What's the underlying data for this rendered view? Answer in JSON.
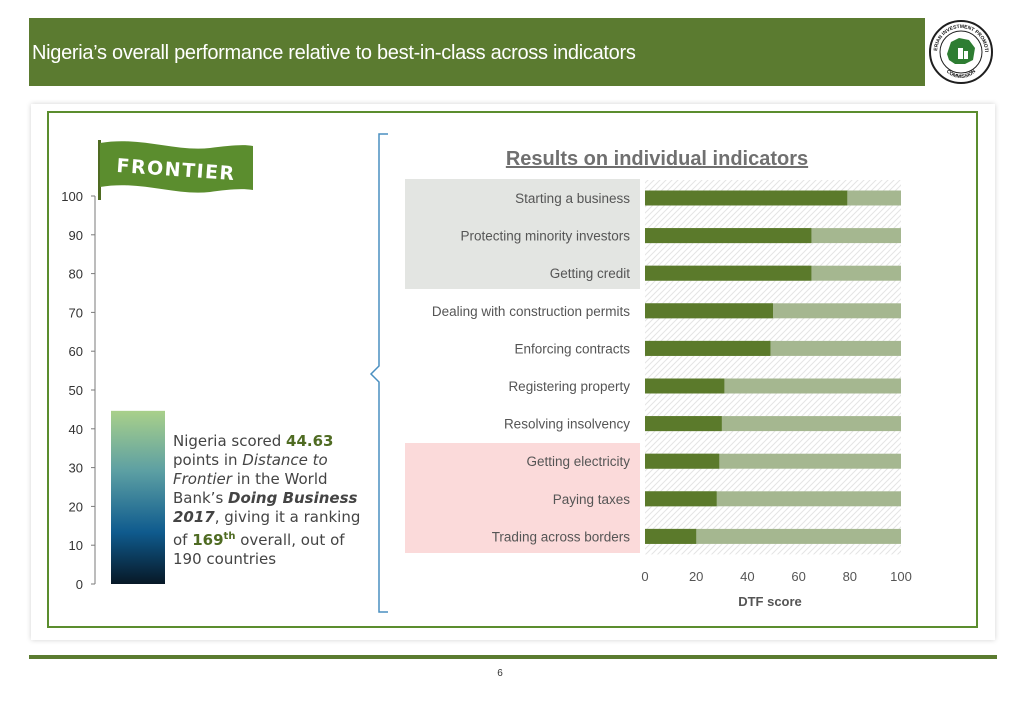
{
  "header": {
    "title": "Nigeria’s overall performance relative to best-in-class across indicators"
  },
  "logo": {
    "text_top": "NIGERIAN INVESTMENT PROMOTION",
    "text_bottom": "COMMISSION"
  },
  "flag_label": "FRONTIER",
  "blurb": {
    "p1": "Nigeria scored ",
    "score": "44.63",
    "p2": " points in ",
    "dtf": "Distance to Frontier",
    "p3": " in the World Bank’s ",
    "db": "Doing Business 2017",
    "p4": ", giving it a ranking of ",
    "rank": "169",
    "rank_sup": "th",
    "p5": " overall, out of 190 countries"
  },
  "page_number": "6",
  "colors": {
    "header_green": "#5b7b30",
    "bar_dark": "#5b7a2b",
    "bar_light": "#a5b790",
    "band_grey": "#e3e5e2",
    "band_pink": "#fbdada"
  },
  "chart_data": [
    {
      "type": "bar",
      "orientation": "vertical",
      "categories": [
        ""
      ],
      "values": [
        44.63
      ],
      "ylim": [
        0,
        100
      ],
      "yticks": [
        "0",
        "10",
        "20",
        "30",
        "40",
        "50",
        "60",
        "70",
        "80",
        "90",
        "100"
      ]
    },
    {
      "type": "bar",
      "orientation": "horizontal",
      "stacked": true,
      "title": "Results on individual indicators",
      "xlabel": "DTF score",
      "xlim": [
        0,
        100
      ],
      "xticks": [
        "0",
        "20",
        "40",
        "60",
        "80",
        "100"
      ],
      "categories": [
        "Starting a business",
        "Protecting minority investors",
        "Getting credit",
        "Dealing with construction permits",
        "Enforcing contracts",
        "Registering property",
        "Resolving insolvency",
        "Getting electricity",
        "Paying taxes",
        "Trading across borders"
      ],
      "values": [
        79,
        65,
        65,
        50,
        49,
        31,
        30,
        29,
        28,
        20
      ]
    }
  ]
}
